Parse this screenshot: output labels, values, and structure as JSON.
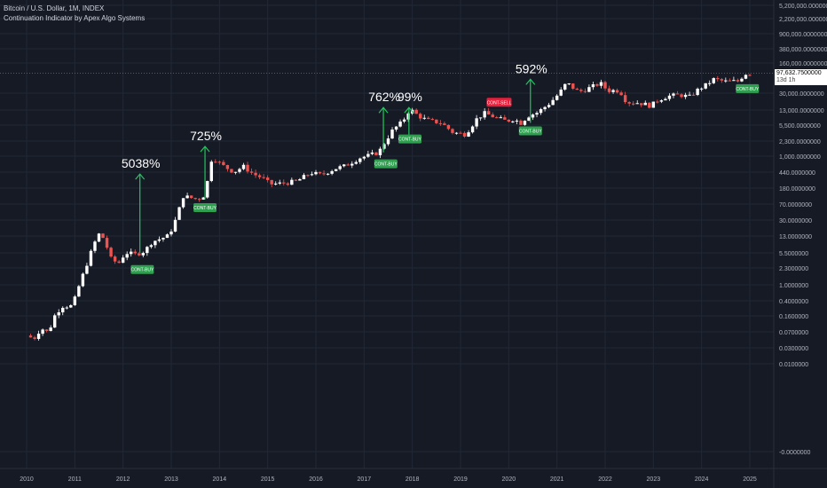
{
  "header": {
    "title": "Bitcoin / U.S. Dollar, 1M, INDEX",
    "indicator": "Continuation Indicator by Apex Algo Systems"
  },
  "last_price": {
    "value": "97,632.7500000",
    "countdown": "13d 1h"
  },
  "colors": {
    "background": "#161a25",
    "grid": "#232836",
    "up": "#ffffff",
    "down": "#ef5350",
    "buy": "#2e9e4f",
    "sell": "#e91e3a",
    "arrow": "#22c55e",
    "text": "#d1d4dc"
  },
  "chart_data": {
    "type": "candlestick",
    "scale": "log",
    "grid": true,
    "x_ticks": [
      "2010",
      "2011",
      "2012",
      "2013",
      "2014",
      "2015",
      "2016",
      "2017",
      "2018",
      "2019",
      "2020",
      "2021",
      "2022",
      "2023",
      "2024",
      "2025"
    ],
    "y_ticks": [
      "5,200,000.0000000",
      "2,200,000.0000000",
      "900,000.0000000",
      "380,000.0000000",
      "160,000.0000000",
      "30,000.0000000",
      "13,000.0000000",
      "5,500.0000000",
      "2,300.0000000",
      "1,000.0000000",
      "440.0000000",
      "180.0000000",
      "70.0000000",
      "30.0000000",
      "13.0000000",
      "5.5000000",
      "2.3000000",
      "1.0000000",
      "0.4000000",
      "0.1600000",
      "0.0700000",
      "0.0300000",
      "0.0100000",
      "-0.0000000"
    ],
    "price_path": [
      [
        2010.0,
        0.06
      ],
      [
        2010.15,
        0.05
      ],
      [
        2010.3,
        0.09
      ],
      [
        2010.45,
        0.07
      ],
      [
        2010.6,
        0.2
      ],
      [
        2010.75,
        0.3
      ],
      [
        2010.95,
        0.3
      ],
      [
        2011.1,
        1.0
      ],
      [
        2011.25,
        3.0
      ],
      [
        2011.4,
        9.0
      ],
      [
        2011.5,
        15.0
      ],
      [
        2011.6,
        12.0
      ],
      [
        2011.75,
        4.0
      ],
      [
        2011.9,
        3.0
      ],
      [
        2012.05,
        5.5
      ],
      [
        2012.25,
        5.0
      ],
      [
        2012.45,
        6.0
      ],
      [
        2012.6,
        10.0
      ],
      [
        2012.8,
        12.0
      ],
      [
        2012.95,
        14.0
      ],
      [
        2013.1,
        35.0
      ],
      [
        2013.25,
        120.0
      ],
      [
        2013.4,
        110.0
      ],
      [
        2013.55,
        100.0
      ],
      [
        2013.7,
        130.0
      ],
      [
        2013.85,
        1100.0
      ],
      [
        2013.95,
        800.0
      ],
      [
        2014.1,
        600.0
      ],
      [
        2014.3,
        450.0
      ],
      [
        2014.5,
        600.0
      ],
      [
        2014.7,
        400.0
      ],
      [
        2014.9,
        320.0
      ],
      [
        2015.05,
        230.0
      ],
      [
        2015.3,
        240.0
      ],
      [
        2015.6,
        270.0
      ],
      [
        2015.9,
        430.0
      ],
      [
        2016.1,
        380.0
      ],
      [
        2016.4,
        540.0
      ],
      [
        2016.6,
        620.0
      ],
      [
        2016.9,
        960.0
      ],
      [
        2017.1,
        1100.0
      ],
      [
        2017.3,
        1300.0
      ],
      [
        2017.45,
        2500.0
      ],
      [
        2017.6,
        4500.0
      ],
      [
        2017.8,
        7000.0
      ],
      [
        2017.95,
        14000.0
      ],
      [
        2018.1,
        10000.0
      ],
      [
        2018.3,
        7500.0
      ],
      [
        2018.6,
        6500.0
      ],
      [
        2018.85,
        3800.0
      ],
      [
        2019.1,
        3500.0
      ],
      [
        2019.35,
        8500.0
      ],
      [
        2019.5,
        11000.0
      ],
      [
        2019.75,
        8500.0
      ],
      [
        2019.95,
        7200.0
      ],
      [
        2020.1,
        8000.0
      ],
      [
        2020.25,
        6500.0
      ],
      [
        2020.4,
        9500.0
      ],
      [
        2020.6,
        11500.0
      ],
      [
        2020.85,
        19000.0
      ],
      [
        2021.05,
        33000.0
      ],
      [
        2021.2,
        58000.0
      ],
      [
        2021.45,
        35000.0
      ],
      [
        2021.7,
        45000.0
      ],
      [
        2021.9,
        57000.0
      ],
      [
        2022.05,
        38000.0
      ],
      [
        2022.3,
        38000.0
      ],
      [
        2022.45,
        20000.0
      ],
      [
        2022.7,
        19500.0
      ],
      [
        2022.95,
        16500.0
      ],
      [
        2023.1,
        23000.0
      ],
      [
        2023.3,
        28000.0
      ],
      [
        2023.55,
        30000.0
      ],
      [
        2023.75,
        27000.0
      ],
      [
        2023.95,
        42000.0
      ],
      [
        2024.1,
        52000.0
      ],
      [
        2024.25,
        70000.0
      ],
      [
        2024.5,
        62000.0
      ],
      [
        2024.75,
        63000.0
      ],
      [
        2024.9,
        95000.0
      ],
      [
        2025.05,
        97632.75
      ]
    ],
    "annotations": [
      {
        "label": "5038%",
        "x": 2012.35,
        "y_from": 5.5,
        "y_to": 400.0
      },
      {
        "label": "725%",
        "x": 2013.7,
        "y_from": 100.0,
        "y_to": 1800.0
      },
      {
        "label": "762%",
        "x": 2017.4,
        "y_from": 1300.0,
        "y_to": 15000.0
      },
      {
        "label": "99%",
        "x": 2017.93,
        "y_from": 3000.0,
        "y_to": 15000.0
      },
      {
        "label": "592%",
        "x": 2020.45,
        "y_from": 6500.0,
        "y_to": 70000.0
      }
    ],
    "signals": [
      {
        "label": "CONT-BUY",
        "type": "buy",
        "x": 2012.4,
        "y": 2.2
      },
      {
        "label": "CONT-BUY",
        "type": "buy",
        "x": 2013.7,
        "y": 64.0
      },
      {
        "label": "CONT-BUY",
        "type": "buy",
        "x": 2017.45,
        "y": 700.0
      },
      {
        "label": "CONT-BUY",
        "type": "buy",
        "x": 2017.95,
        "y": 2700.0
      },
      {
        "label": "CONT-SELL",
        "type": "sell",
        "x": 2019.8,
        "y": 20000.0
      },
      {
        "label": "CONT-BUY",
        "type": "buy",
        "x": 2020.45,
        "y": 4200.0
      },
      {
        "label": "CONT-BUY",
        "type": "buy",
        "x": 2024.95,
        "y": 42000.0
      }
    ]
  }
}
